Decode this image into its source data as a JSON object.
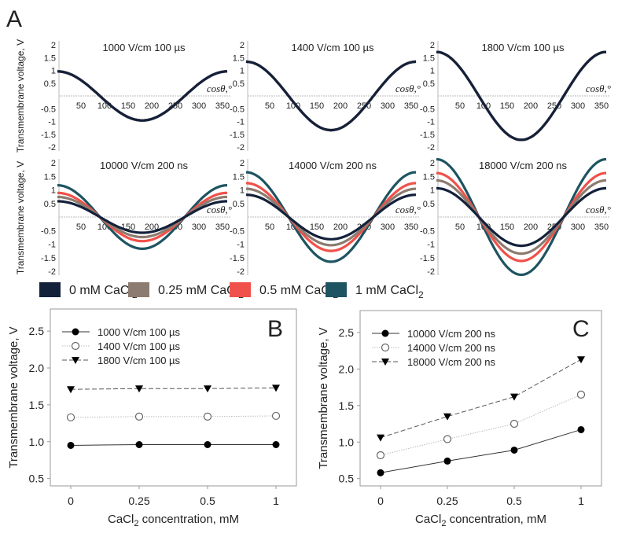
{
  "panel_labels": {
    "a": "A",
    "b": "B",
    "c": "C"
  },
  "colors": {
    "0": "#13213a",
    "0.25": "#8c7b70",
    "0.5": "#f0514a",
    "1": "#1e5461"
  },
  "chart_data": [
    {
      "type": "line",
      "panel": "A",
      "ylabel": "Transmembrane voltage, V",
      "xlabel": "cosθ,°",
      "xlim": [
        0,
        360
      ],
      "ylim": [
        -2,
        2
      ],
      "xticks": [
        50,
        100,
        150,
        200,
        250,
        300,
        350
      ],
      "yticks": [
        2,
        1.5,
        1,
        0.5,
        -0.5,
        -1,
        -1.5,
        -2
      ],
      "function": "amplitude * cos(theta)",
      "legend": [
        {
          "label": "0 mM CaCl",
          "sub": "2",
          "color_key": "0"
        },
        {
          "label": "0.25 mM CaCl",
          "sub": "2",
          "color_key": "0.25"
        },
        {
          "label": "0.5 mM CaCl",
          "sub": "2",
          "color_key": "0.5"
        },
        {
          "label": "1 mM CaCl",
          "sub": "2",
          "color_key": "1"
        }
      ],
      "subplots": [
        {
          "title": "1000 V/cm 100 µs",
          "amplitudes": [
            0.96,
            0.96,
            0.96,
            0.96
          ]
        },
        {
          "title": "1400 V/cm 100 µs",
          "amplitudes": [
            1.34,
            1.34,
            1.34,
            1.34
          ]
        },
        {
          "title": "1800 V/cm 100 µs",
          "amplitudes": [
            1.72,
            1.72,
            1.72,
            1.72
          ]
        },
        {
          "title": "10000 V/cm 200 ns",
          "amplitudes": [
            0.58,
            0.74,
            0.89,
            1.17
          ]
        },
        {
          "title": "14000 V/cm 200 ns",
          "amplitudes": [
            0.82,
            1.04,
            1.25,
            1.65
          ]
        },
        {
          "title": "18000 V/cm 200 ns",
          "amplitudes": [
            1.06,
            1.35,
            1.62,
            2.13
          ]
        }
      ]
    },
    {
      "type": "line",
      "panel": "B",
      "categories": [
        "0",
        "0.25",
        "0.5",
        "1"
      ],
      "ylabel": "Transmembrane voltage, V",
      "xlabel": "CaCl",
      "xlabel_sub": "2",
      "xlabel_rest": " concentration, mM",
      "ylim": [
        0.4,
        2.8
      ],
      "yticks": [
        "0.5",
        "1.0",
        "1.5",
        "2.0",
        "2.5"
      ],
      "legend_position": "top-left",
      "series": [
        {
          "name": "1000 V/cm 100 µs",
          "marker": "filled-circle",
          "line": "solid",
          "values": [
            0.95,
            0.96,
            0.96,
            0.96
          ]
        },
        {
          "name": "1400 V/cm 100 µs",
          "marker": "open-circle",
          "line": "dotted",
          "values": [
            1.33,
            1.34,
            1.34,
            1.35
          ]
        },
        {
          "name": "1800 V/cm 100 µs",
          "marker": "down-triangle",
          "line": "dashed",
          "values": [
            1.71,
            1.72,
            1.72,
            1.73
          ]
        }
      ]
    },
    {
      "type": "line",
      "panel": "C",
      "categories": [
        "0",
        "0.25",
        "0.5",
        "1"
      ],
      "ylabel": "Transmembrane voltage, V",
      "xlabel": "CaCl",
      "xlabel_sub": "2",
      "xlabel_rest": " concentration, mM",
      "ylim": [
        0.4,
        2.8
      ],
      "yticks": [
        "0.5",
        "1.0",
        "1.5",
        "2.0",
        "2.5"
      ],
      "legend_position": "top-left",
      "series": [
        {
          "name": "10000 V/cm 200 ns",
          "marker": "filled-circle",
          "line": "solid",
          "values": [
            0.58,
            0.74,
            0.89,
            1.17
          ]
        },
        {
          "name": "14000 V/cm 200 ns",
          "marker": "open-circle",
          "line": "dotted",
          "values": [
            0.82,
            1.04,
            1.25,
            1.65
          ]
        },
        {
          "name": "18000 V/cm 200 ns",
          "marker": "down-triangle",
          "line": "dashed",
          "values": [
            1.06,
            1.35,
            1.62,
            2.13
          ]
        }
      ]
    }
  ]
}
